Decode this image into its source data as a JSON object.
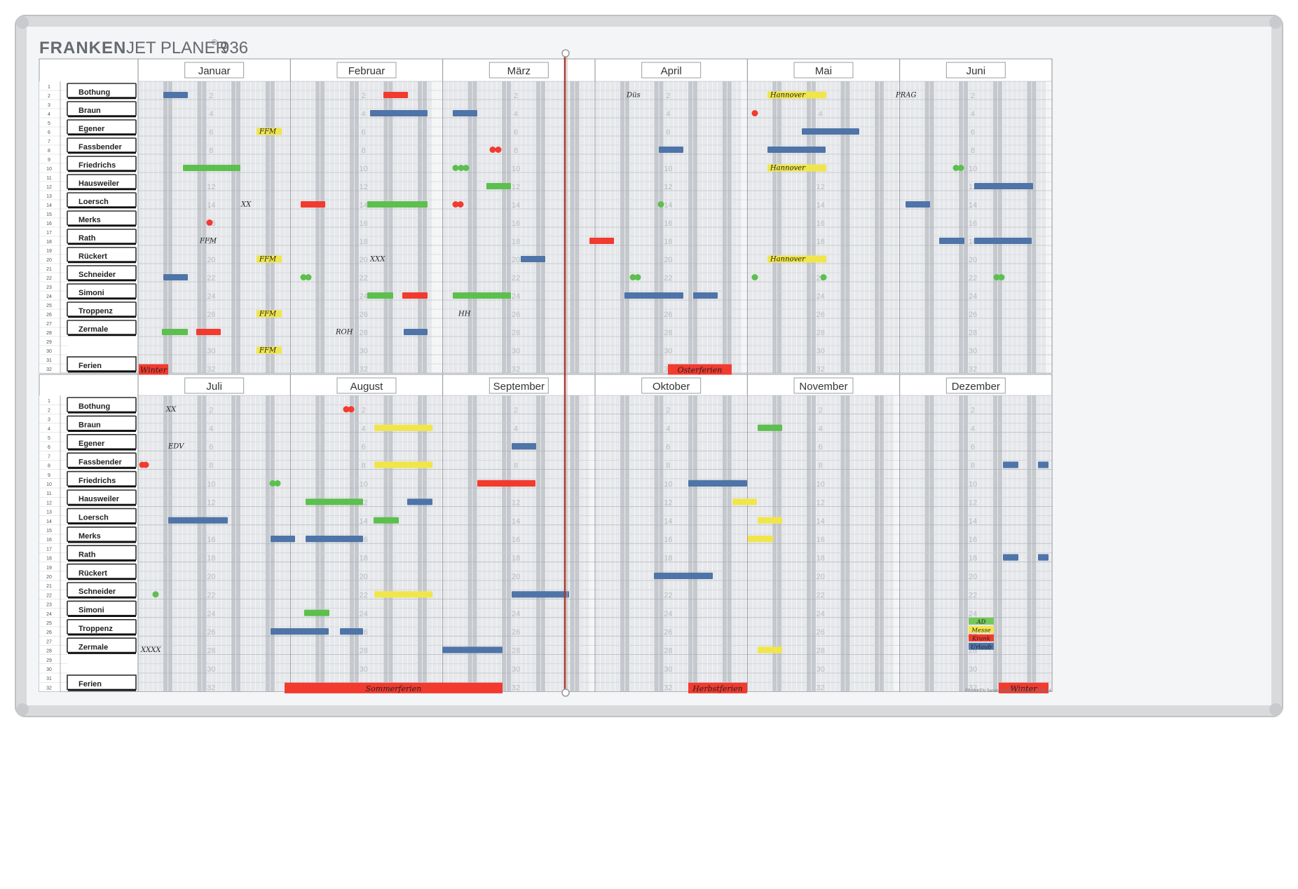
{
  "brand": "FRANKEN",
  "product": "JET PLANER",
  "registered": "®",
  "model": "936",
  "footer": "FRANKEN Service-Hotline: 0 21 31 / 34 98 44",
  "row_numbers": [
    "1",
    "2",
    "3",
    "4",
    "5",
    "6",
    "7",
    "8",
    "9",
    "10",
    "11",
    "12",
    "13",
    "14",
    "15",
    "16",
    "17",
    "18",
    "19",
    "20",
    "21",
    "22",
    "23",
    "24",
    "25",
    "26",
    "27",
    "28",
    "29",
    "30",
    "31",
    "32"
  ],
  "staff": [
    "Bothung",
    "Braun",
    "Egener",
    "Fassbender",
    "Friedrichs",
    "Hausweiler",
    "Loersch",
    "Merks",
    "Rath",
    "Rückert",
    "Schneider",
    "Simoni",
    "Troppenz",
    "Zermale"
  ],
  "holiday_label": "Ferien",
  "half_markers": [
    "2",
    "4",
    "6",
    "8",
    "10",
    "12",
    "14",
    "16",
    "18",
    "20",
    "22",
    "24",
    "26",
    "28",
    "30",
    "32"
  ],
  "months": [
    {
      "name": "Januar",
      "days": 31
    },
    {
      "name": "Februar",
      "days": 29
    },
    {
      "name": "März",
      "days": 31
    },
    {
      "name": "April",
      "days": 30
    },
    {
      "name": "Mai",
      "days": 31
    },
    {
      "name": "Juni",
      "days": 30
    },
    {
      "name": "Juli",
      "days": 31
    },
    {
      "name": "August",
      "days": 31
    },
    {
      "name": "September",
      "days": 30
    },
    {
      "name": "Oktober",
      "days": 31
    },
    {
      "name": "November",
      "days": 30
    },
    {
      "name": "Dezember",
      "days": 31
    }
  ],
  "holiday_banners": [
    "Winter",
    "Osterferien",
    "Sommerferien",
    "Herbstferien",
    "Winter"
  ],
  "annotations": [
    "FFM",
    "XX",
    "FFM",
    "FFM",
    "FFM",
    "FFM",
    "XXX",
    "ROH",
    "HH",
    "Düs",
    "Hannover",
    "Hannover",
    "Hannover",
    "PRAG",
    "XX",
    "EDV",
    "XXXX"
  ],
  "legend": [
    {
      "label": "AD",
      "color": "#74c85a"
    },
    {
      "label": "Messe",
      "color": "#f2e64f"
    },
    {
      "label": "Krank",
      "color": "#f23a2f"
    },
    {
      "label": "Urlaub",
      "color": "#4f74a8"
    }
  ],
  "magnet_colors": {
    "blue": "#4f74a8",
    "green": "#5cbf4e",
    "red": "#f23a2f",
    "yellow": "#f0e64c"
  }
}
